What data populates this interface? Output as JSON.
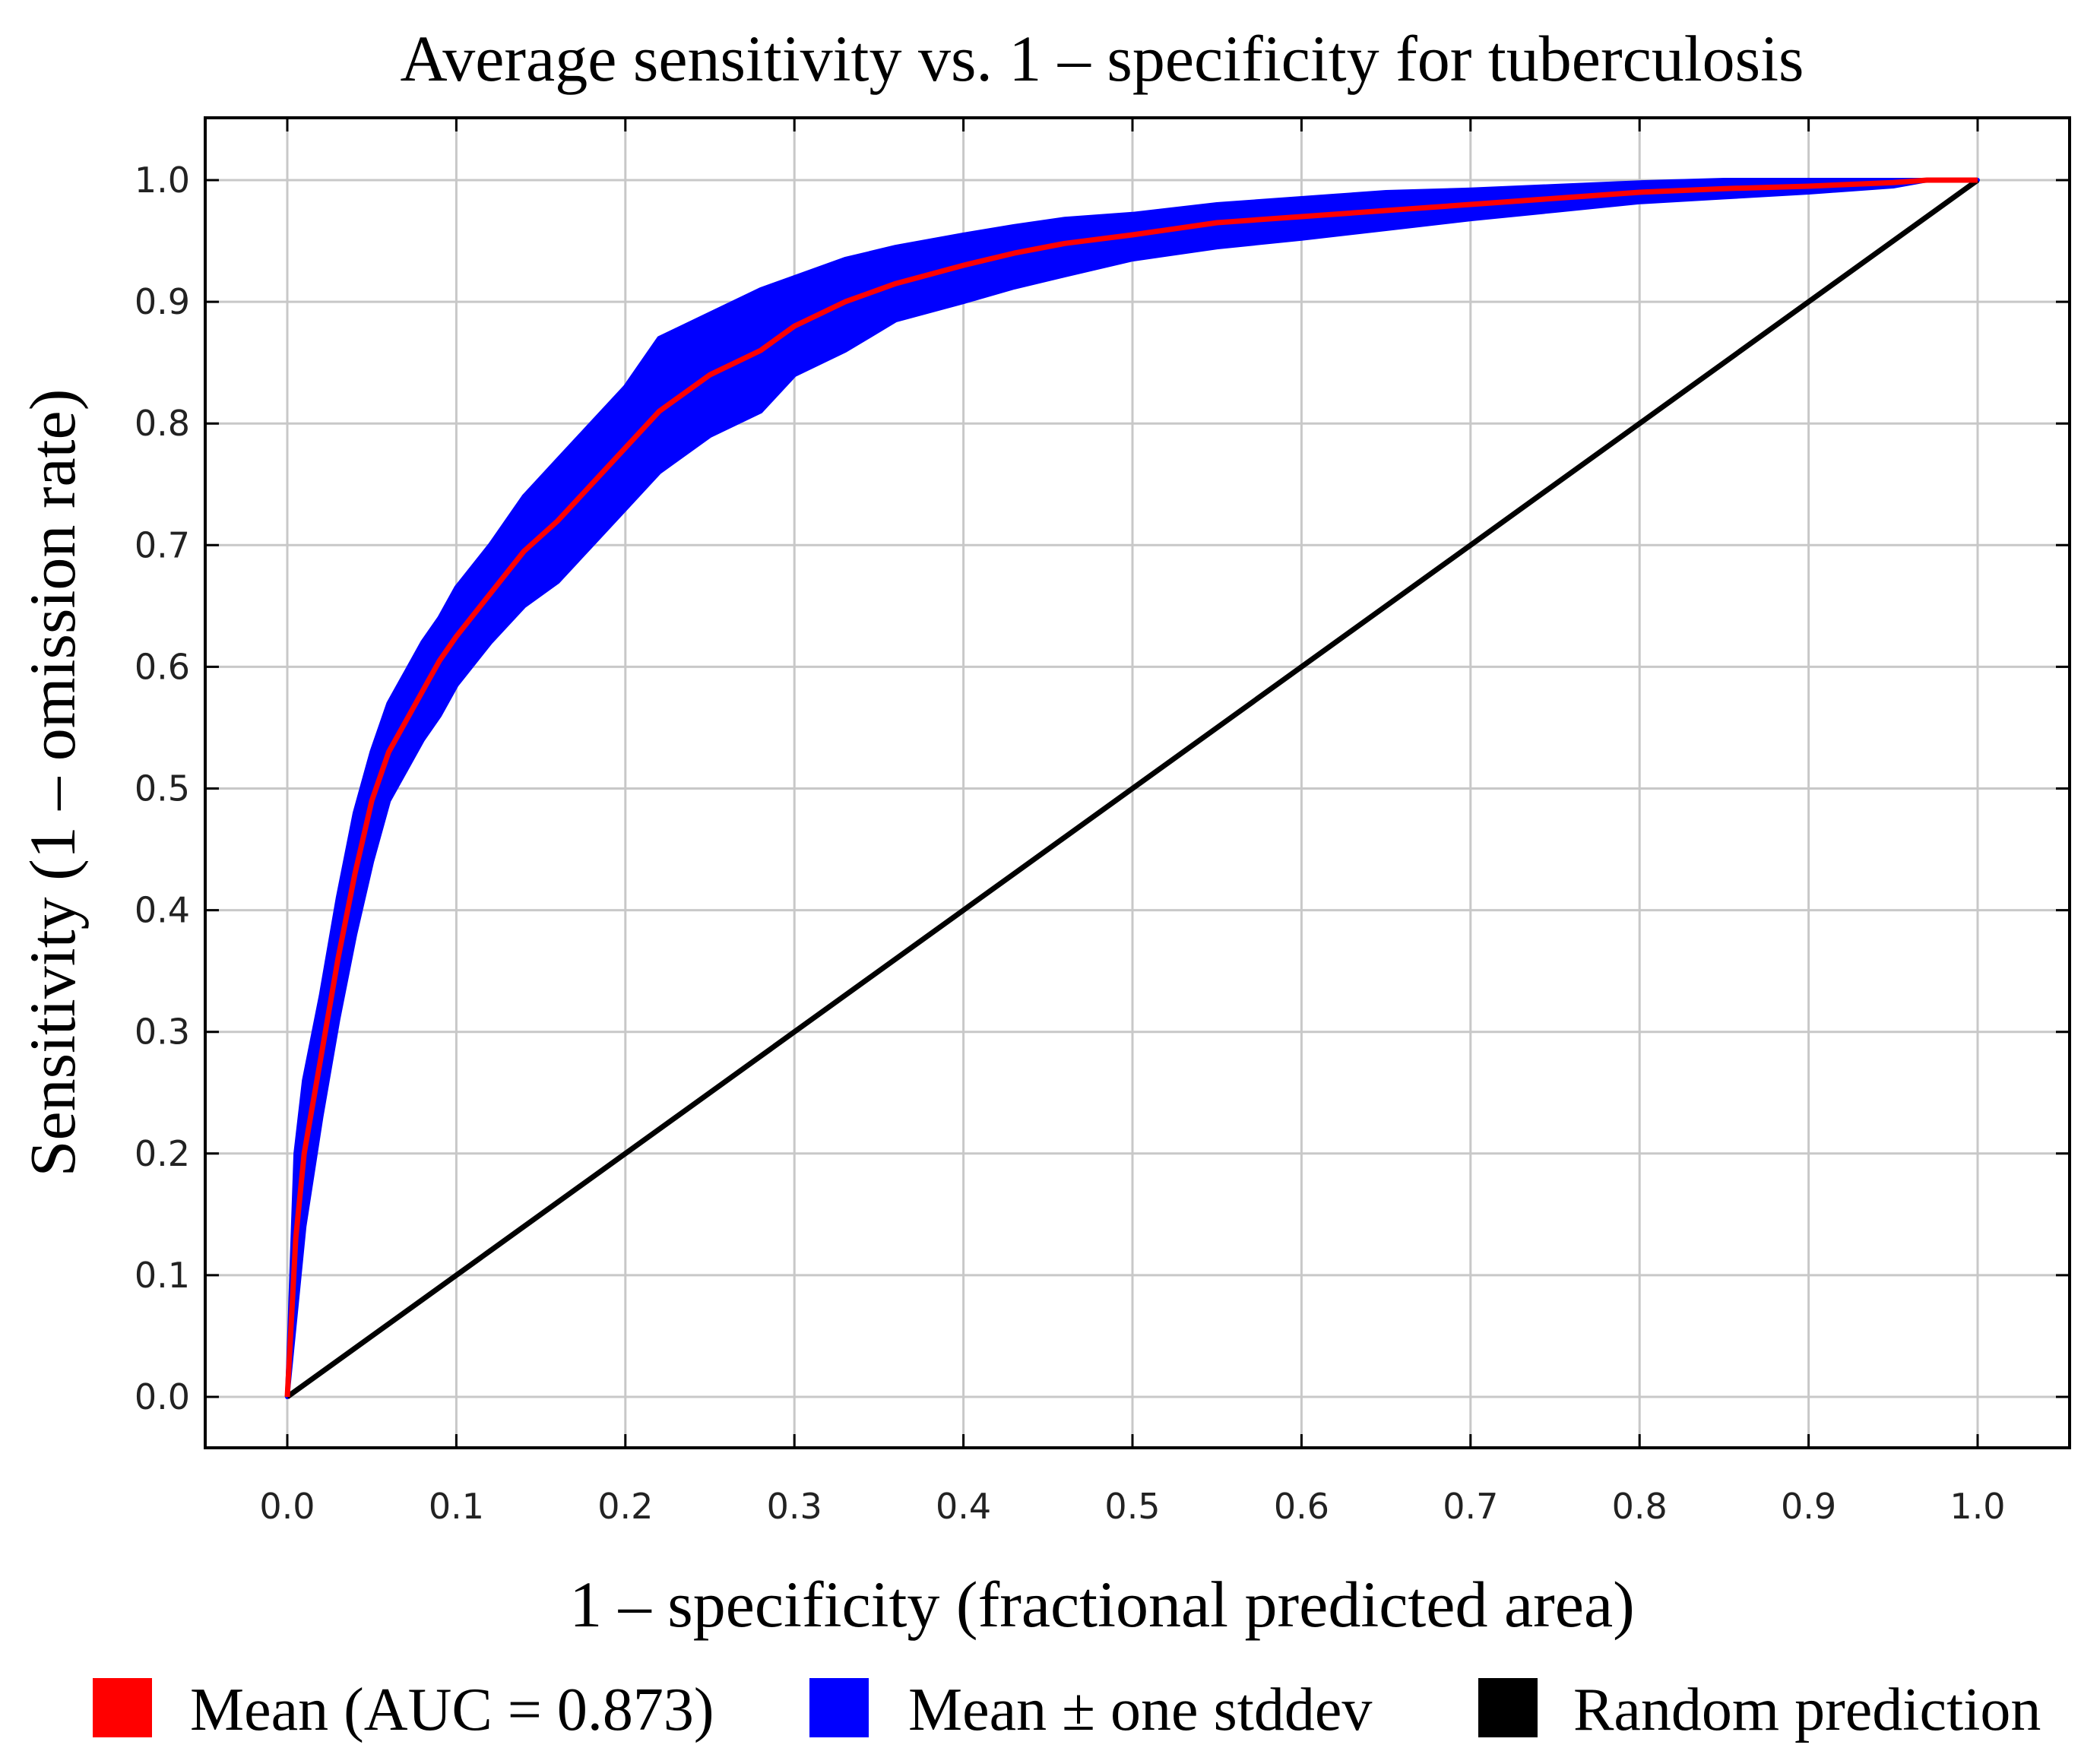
{
  "chart_data": {
    "type": "line",
    "title": "Average sensitivity vs. 1 – specificity for tuberculosis",
    "xlabel": "1 – specificity (fractional predicted area)",
    "ylabel": "Sensitivity (1 – omission rate)",
    "xlim": [
      0,
      1
    ],
    "ylim": [
      0,
      1
    ],
    "xticks": [
      "0.0",
      "0.1",
      "0.2",
      "0.3",
      "0.4",
      "0.5",
      "0.6",
      "0.7",
      "0.8",
      "0.9",
      "1.0"
    ],
    "yticks": [
      "0.0",
      "0.1",
      "0.2",
      "0.3",
      "0.4",
      "0.5",
      "0.6",
      "0.7",
      "0.8",
      "0.9",
      "1.0"
    ],
    "grid": true,
    "legend_position": "bottom",
    "series": [
      {
        "name": "Mean (AUC = 0.873)",
        "color": "#ff0000",
        "x": [
          0,
          0.005,
          0.01,
          0.02,
          0.03,
          0.04,
          0.05,
          0.06,
          0.07,
          0.08,
          0.09,
          0.1,
          0.12,
          0.14,
          0.16,
          0.18,
          0.2,
          0.22,
          0.25,
          0.28,
          0.3,
          0.33,
          0.36,
          0.4,
          0.43,
          0.46,
          0.5,
          0.55,
          0.6,
          0.65,
          0.7,
          0.75,
          0.8,
          0.85,
          0.9,
          0.95,
          0.97,
          1.0
        ],
        "y": [
          0,
          0.13,
          0.2,
          0.28,
          0.36,
          0.43,
          0.49,
          0.53,
          0.555,
          0.58,
          0.605,
          0.625,
          0.66,
          0.695,
          0.72,
          0.75,
          0.78,
          0.81,
          0.84,
          0.86,
          0.88,
          0.9,
          0.915,
          0.93,
          0.94,
          0.948,
          0.955,
          0.965,
          0.97,
          0.975,
          0.98,
          0.985,
          0.99,
          0.993,
          0.995,
          0.998,
          1.0,
          1.0
        ]
      },
      {
        "name": "Mean ± one stddev",
        "color": "#0000ff",
        "x": [
          0,
          0.005,
          0.01,
          0.02,
          0.03,
          0.04,
          0.05,
          0.06,
          0.07,
          0.08,
          0.09,
          0.1,
          0.12,
          0.14,
          0.16,
          0.18,
          0.2,
          0.22,
          0.25,
          0.28,
          0.3,
          0.33,
          0.36,
          0.4,
          0.43,
          0.46,
          0.5,
          0.55,
          0.6,
          0.65,
          0.7,
          0.75,
          0.8,
          0.85,
          0.9,
          0.95,
          0.97,
          1.0
        ],
        "upper": [
          0,
          0.2,
          0.26,
          0.33,
          0.41,
          0.48,
          0.53,
          0.57,
          0.595,
          0.62,
          0.64,
          0.665,
          0.7,
          0.74,
          0.77,
          0.8,
          0.83,
          0.87,
          0.89,
          0.91,
          0.92,
          0.935,
          0.945,
          0.955,
          0.962,
          0.968,
          0.972,
          0.98,
          0.985,
          0.99,
          0.992,
          0.995,
          0.998,
          1.0,
          1.0,
          1.0,
          1.0,
          1.0
        ],
        "lower": [
          0,
          0.07,
          0.14,
          0.23,
          0.31,
          0.38,
          0.44,
          0.49,
          0.515,
          0.54,
          0.56,
          0.585,
          0.62,
          0.65,
          0.67,
          0.7,
          0.73,
          0.76,
          0.79,
          0.81,
          0.84,
          0.86,
          0.885,
          0.9,
          0.912,
          0.922,
          0.935,
          0.945,
          0.952,
          0.96,
          0.968,
          0.975,
          0.982,
          0.986,
          0.99,
          0.995,
          1.0,
          1.0
        ]
      },
      {
        "name": "Random prediction",
        "color": "#000000",
        "x": [
          0,
          1
        ],
        "y": [
          0,
          1
        ]
      }
    ]
  }
}
